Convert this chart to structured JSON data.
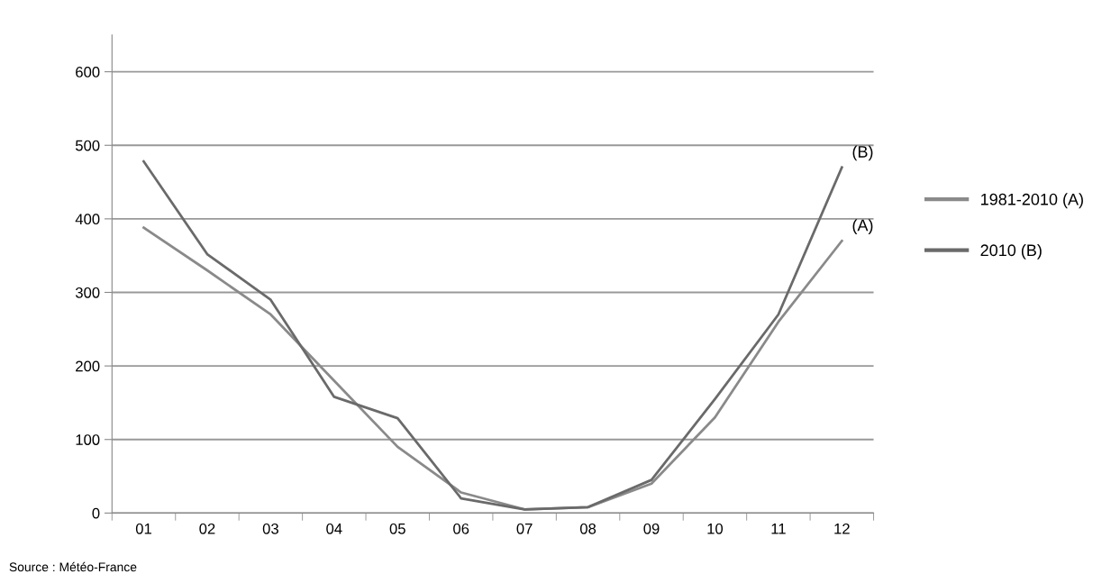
{
  "chart_data": {
    "type": "line",
    "categories": [
      "01",
      "02",
      "03",
      "04",
      "05",
      "06",
      "07",
      "08",
      "09",
      "10",
      "11",
      "12"
    ],
    "series": [
      {
        "name": "1981-2010 (A)",
        "color": "#8a8a8a",
        "values": [
          388,
          330,
          270,
          180,
          90,
          28,
          5,
          8,
          40,
          130,
          260,
          370
        ]
      },
      {
        "name": "2010 (B)",
        "color": "#6a6a6a",
        "values": [
          478,
          352,
          290,
          158,
          129,
          20,
          5,
          8,
          45,
          155,
          270,
          470
        ]
      }
    ],
    "ylim": [
      0,
      650
    ],
    "yticks": [
      0,
      100,
      200,
      300,
      400,
      500,
      600
    ],
    "grid": "y",
    "legend": "right",
    "marker": "none",
    "line_style": "solid",
    "annotations": [
      {
        "text": "(A)",
        "x": "12",
        "y": 370
      },
      {
        "text": "(B)",
        "x": "12",
        "y": 470
      },
      "Source : Météo-France"
    ]
  }
}
